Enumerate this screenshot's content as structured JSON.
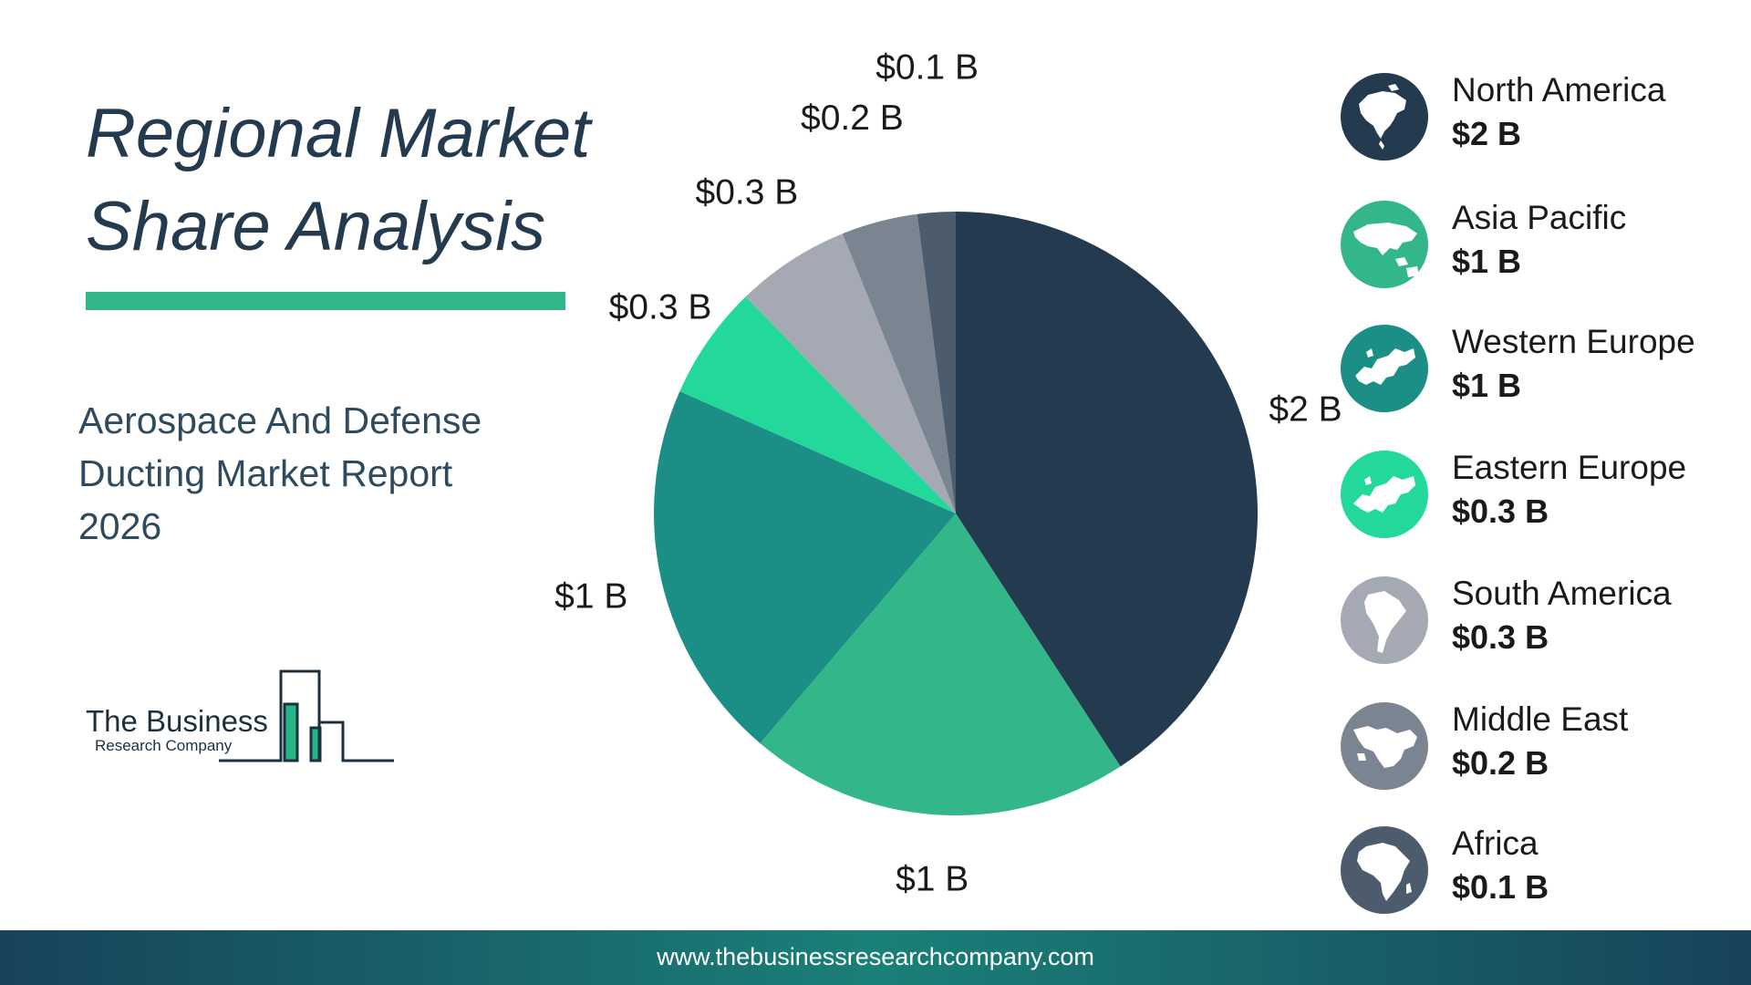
{
  "header": {
    "title": "Regional Market Share Analysis",
    "subtitle": "Aerospace And Defense Ducting Market Report 2026"
  },
  "logo": {
    "name": "The Business",
    "sub": "Research Company"
  },
  "footer": {
    "url": "www.thebusinessresearchcompany.com"
  },
  "colors": {
    "north_america": "#243a4f",
    "asia_pacific": "#33b789",
    "western_europe": "#1b8e85",
    "eastern_europe": "#22d89b",
    "south_america": "#a4a9b4",
    "middle_east": "#7b8591",
    "africa": "#4d5c6d",
    "accent": "#33b789"
  },
  "chart_data": {
    "type": "pie",
    "start_angle_deg": 0,
    "direction": "clockwise",
    "categories": [
      "North America",
      "Asia Pacific",
      "Western Europe",
      "Eastern Europe",
      "South America",
      "Middle East",
      "Africa"
    ],
    "values": [
      2.0,
      1.0,
      1.0,
      0.3,
      0.3,
      0.2,
      0.1
    ],
    "labels": [
      "$2 B",
      "$1 B",
      "$1 B",
      "$0.3 B",
      "$0.3 B",
      "$0.2 B",
      "$0.1 B"
    ],
    "legend": [
      {
        "name": "North America",
        "value": "$2 B",
        "icon": "north-america-map-icon"
      },
      {
        "name": "Asia Pacific",
        "value": "$1 B",
        "icon": "asia-pacific-map-icon"
      },
      {
        "name": "Western Europe",
        "value": "$1 B",
        "icon": "western-europe-map-icon"
      },
      {
        "name": "Eastern Europe",
        "value": "$0.3 B",
        "icon": "eastern-europe-map-icon"
      },
      {
        "name": "South America",
        "value": "$0.3 B",
        "icon": "south-america-map-icon"
      },
      {
        "name": "Middle East",
        "value": "$0.2 B",
        "icon": "middle-east-map-icon"
      },
      {
        "name": "Africa",
        "value": "$0.1 B",
        "icon": "africa-map-icon"
      }
    ],
    "legend_position": "right"
  }
}
